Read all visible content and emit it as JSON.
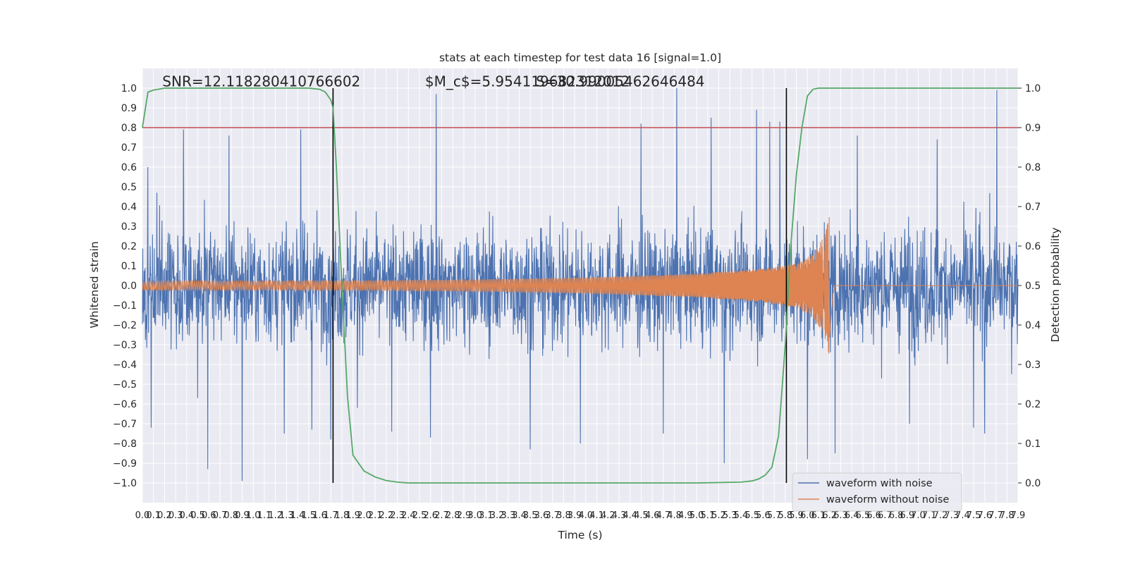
{
  "chart_data": {
    "type": "line",
    "title": "stats at each timestep for test data 16 [signal=1.0]",
    "xlabel": "Time (s)",
    "ylabel": "Whitened strain",
    "y2label": "Detection probability",
    "xlim": [
      0.0,
      7.9
    ],
    "ylim": [
      -1.1,
      1.1
    ],
    "y2lim": [
      -0.05,
      1.05
    ],
    "x_ticks": [
      0.0,
      0.1,
      0.2,
      0.3,
      0.4,
      0.5,
      0.6,
      0.7,
      0.8,
      0.9,
      1.0,
      1.1,
      1.2,
      1.3,
      1.4,
      1.5,
      1.6,
      1.7,
      1.8,
      1.9,
      2.0,
      2.1,
      2.2,
      2.3,
      2.4,
      2.5,
      2.6,
      2.7,
      2.8,
      2.9,
      3.0,
      3.1,
      3.2,
      3.3,
      3.4,
      3.5,
      3.6,
      3.7,
      3.8,
      3.9,
      4.0,
      4.1,
      4.2,
      4.3,
      4.4,
      4.5,
      4.6,
      4.7,
      4.8,
      4.9,
      5.0,
      5.1,
      5.2,
      5.3,
      5.4,
      5.5,
      5.6,
      5.7,
      5.8,
      5.9,
      6.0,
      6.1,
      6.2,
      6.3,
      6.4,
      6.5,
      6.6,
      6.7,
      6.8,
      6.9,
      7.0,
      7.1,
      7.2,
      7.3,
      7.4,
      7.5,
      7.6,
      7.7,
      7.8,
      7.9
    ],
    "x_tick_labels": [
      "0.0",
      "0.1",
      "0.2",
      "0.3",
      "0.4",
      "0.5",
      "0.6",
      "0.7",
      "0.8",
      "0.9",
      "1.0",
      "1.1",
      "1.2",
      "1.3",
      "1.4",
      "1.5",
      "1.6",
      "1.7",
      "1.8",
      "1.9",
      "2.0",
      "2.1",
      "2.2",
      "2.3",
      "2.4",
      "2.5",
      "2.6",
      "2.7",
      "2.8",
      "2.9",
      "3.0",
      "3.1",
      "3.2",
      "3.3",
      "3.4",
      "3.5",
      "3.6",
      "3.7",
      "3.8",
      "3.9",
      "4.0",
      "4.1",
      "4.2",
      "4.3",
      "4.4",
      "4.5",
      "4.6",
      "4.7",
      "4.8",
      "4.9",
      "5.0",
      "5.1",
      "5.2",
      "5.3",
      "5.4",
      "5.5",
      "5.6",
      "5.7",
      "5.8",
      "5.9",
      "6.0",
      "6.1",
      "6.2",
      "6.3",
      "6.4",
      "6.5",
      "6.6",
      "6.7",
      "6.8",
      "6.9",
      "7.0",
      "7.1",
      "7.2",
      "7.3",
      "7.4",
      "7.5",
      "7.6",
      "7.7",
      "7.8",
      "7.9"
    ],
    "y_ticks": [
      -1.0,
      -0.9,
      -0.8,
      -0.7,
      -0.6,
      -0.5,
      -0.4,
      -0.3,
      -0.2,
      -0.1,
      0.0,
      0.1,
      0.2,
      0.3,
      0.4,
      0.5,
      0.6,
      0.7,
      0.8,
      0.9,
      1.0
    ],
    "y_tick_labels": [
      "−1.0",
      "−0.9",
      "−0.8",
      "−0.7",
      "−0.6",
      "−0.5",
      "−0.4",
      "−0.3",
      "−0.2",
      "−0.1",
      "0.0",
      "0.1",
      "0.2",
      "0.3",
      "0.4",
      "0.5",
      "0.6",
      "0.7",
      "0.8",
      "0.9",
      "1.0"
    ],
    "y2_ticks": [
      0.0,
      0.1,
      0.2,
      0.3,
      0.4,
      0.5,
      0.6,
      0.7,
      0.8,
      0.9,
      1.0
    ],
    "y2_tick_labels": [
      "0.0",
      "0.1",
      "0.2",
      "0.3",
      "0.4",
      "0.5",
      "0.6",
      "0.7",
      "0.8",
      "0.9",
      "1.0"
    ],
    "grid": true,
    "legend_position": "lower-right",
    "annotations": [
      {
        "text": "SNR=12.118280410766602",
        "x": 0.18,
        "y": 1.03
      },
      {
        "text": "$M_c$=5.954119682312012",
        "x": 2.55,
        "y": 1.03
      },
      {
        "text": "S=30.99005462646484",
        "x": 3.55,
        "y": 1.03
      }
    ],
    "threshold": {
      "y2": 0.9,
      "color": "#c44e52"
    },
    "vertical_lines": [
      1.72,
      5.81
    ],
    "series": [
      {
        "name": "waveform with noise",
        "color": "#4c72b0",
        "axis": "left",
        "kind": "noise",
        "envelope_abs": 0.55,
        "spikes": [
          {
            "x": 0.05,
            "y": 0.6
          },
          {
            "x": 0.08,
            "y": -0.72
          },
          {
            "x": 0.13,
            "y": 0.47
          },
          {
            "x": 0.37,
            "y": 0.79
          },
          {
            "x": 0.5,
            "y": -0.57
          },
          {
            "x": 0.59,
            "y": -0.93
          },
          {
            "x": 0.78,
            "y": 0.76
          },
          {
            "x": 0.9,
            "y": -0.99
          },
          {
            "x": 1.28,
            "y": -0.75
          },
          {
            "x": 1.43,
            "y": 0.79
          },
          {
            "x": 1.53,
            "y": -0.73
          },
          {
            "x": 1.7,
            "y": -0.78
          },
          {
            "x": 1.94,
            "y": -0.62
          },
          {
            "x": 2.25,
            "y": -0.74
          },
          {
            "x": 2.6,
            "y": -0.77
          },
          {
            "x": 2.65,
            "y": 0.97
          },
          {
            "x": 3.5,
            "y": -0.83
          },
          {
            "x": 3.95,
            "y": -0.8
          },
          {
            "x": 4.5,
            "y": 0.82
          },
          {
            "x": 4.7,
            "y": -0.75
          },
          {
            "x": 4.82,
            "y": 1.0
          },
          {
            "x": 5.13,
            "y": 0.85
          },
          {
            "x": 5.25,
            "y": -0.9
          },
          {
            "x": 5.54,
            "y": 0.89
          },
          {
            "x": 5.66,
            "y": 0.83
          },
          {
            "x": 5.75,
            "y": 0.83
          },
          {
            "x": 6.0,
            "y": -0.88
          },
          {
            "x": 6.25,
            "y": -0.85
          },
          {
            "x": 6.45,
            "y": 0.76
          },
          {
            "x": 6.92,
            "y": -0.7
          },
          {
            "x": 7.17,
            "y": 0.74
          },
          {
            "x": 7.5,
            "y": -0.72
          },
          {
            "x": 7.6,
            "y": -0.75
          },
          {
            "x": 7.71,
            "y": 0.99
          }
        ]
      },
      {
        "name": "waveform without noise",
        "color": "#dd8452",
        "axis": "left",
        "kind": "chirp",
        "merger_time": 6.2,
        "envelope": [
          {
            "x": 0.0,
            "y": 0.022
          },
          {
            "x": 2.0,
            "y": 0.025
          },
          {
            "x": 3.0,
            "y": 0.03
          },
          {
            "x": 4.0,
            "y": 0.04
          },
          {
            "x": 5.0,
            "y": 0.06
          },
          {
            "x": 5.6,
            "y": 0.085
          },
          {
            "x": 5.9,
            "y": 0.11
          },
          {
            "x": 6.05,
            "y": 0.16
          },
          {
            "x": 6.15,
            "y": 0.25
          },
          {
            "x": 6.2,
            "y": 0.36
          },
          {
            "x": 6.23,
            "y": 0.06
          },
          {
            "x": 6.25,
            "y": 0.0
          },
          {
            "x": 7.9,
            "y": 0.0
          }
        ]
      },
      {
        "name": "detection probability",
        "color": "#55a868",
        "axis": "right",
        "x": [
          0.0,
          0.05,
          0.1,
          0.2,
          0.4,
          1.0,
          1.5,
          1.6,
          1.65,
          1.7,
          1.72,
          1.75,
          1.8,
          1.85,
          1.9,
          2.0,
          2.1,
          2.2,
          2.3,
          2.4,
          2.6,
          3.0,
          4.0,
          5.0,
          5.4,
          5.5,
          5.56,
          5.62,
          5.68,
          5.74,
          5.8,
          5.85,
          5.9,
          5.95,
          6.0,
          6.05,
          6.1,
          6.2,
          7.0,
          7.9
        ],
        "y": [
          0.9,
          0.99,
          0.995,
          1.0,
          1.0,
          1.0,
          1.0,
          0.997,
          0.99,
          0.97,
          0.95,
          0.8,
          0.5,
          0.22,
          0.07,
          0.03,
          0.015,
          0.006,
          0.002,
          0.0,
          0.0,
          0.0,
          0.0,
          0.0,
          0.002,
          0.005,
          0.01,
          0.02,
          0.04,
          0.12,
          0.35,
          0.6,
          0.78,
          0.9,
          0.98,
          0.997,
          1.0,
          1.0,
          1.0,
          1.0
        ]
      }
    ]
  }
}
